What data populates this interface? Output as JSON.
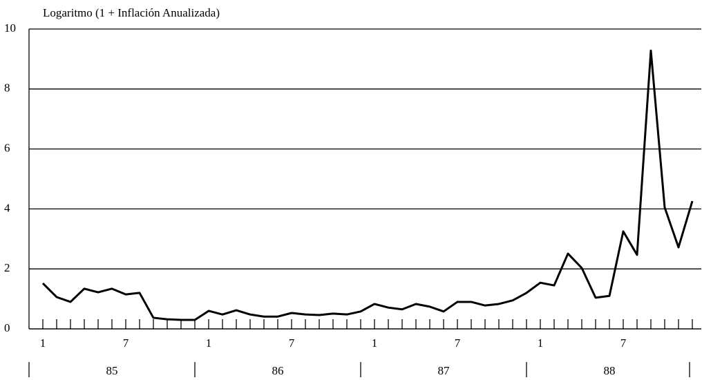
{
  "chart_data": {
    "type": "line",
    "title": "Logaritmo (1 + Inflación Anualizada)",
    "categories": [
      "1",
      null,
      null,
      null,
      null,
      null,
      "7",
      null,
      null,
      null,
      null,
      null,
      "1",
      null,
      null,
      null,
      null,
      null,
      "7",
      null,
      null,
      null,
      null,
      null,
      "1",
      null,
      null,
      null,
      null,
      null,
      "7",
      null,
      null,
      null,
      null,
      null,
      "1",
      null,
      null,
      null,
      null,
      null,
      "7",
      null,
      null,
      null,
      null,
      null
    ],
    "groups": [
      "85",
      "86",
      "87",
      "88"
    ],
    "values": [
      1.52,
      1.06,
      0.9,
      1.34,
      1.22,
      1.34,
      1.15,
      1.2,
      0.37,
      0.32,
      0.3,
      0.3,
      0.6,
      0.48,
      0.62,
      0.48,
      0.41,
      0.41,
      0.53,
      0.48,
      0.46,
      0.51,
      0.48,
      0.58,
      0.83,
      0.71,
      0.65,
      0.83,
      0.74,
      0.58,
      0.9,
      0.9,
      0.78,
      0.83,
      0.95,
      1.2,
      1.54,
      1.45,
      2.51,
      2.03,
      1.04,
      1.1,
      3.25,
      2.47,
      9.28,
      4.05,
      2.72,
      4.26
    ],
    "color": "#000000",
    "ylim": [
      0,
      10
    ],
    "yticks": [
      0,
      2,
      4,
      6,
      8,
      10
    ],
    "grid": true
  }
}
